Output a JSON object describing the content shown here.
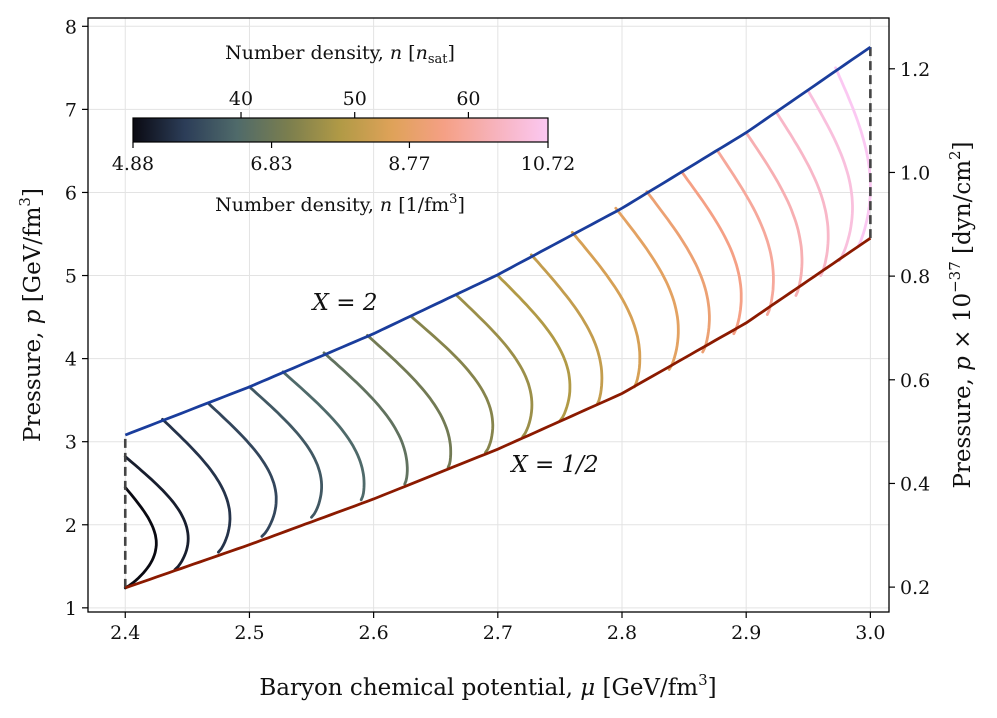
{
  "chart_data": {
    "type": "line",
    "xlabel": "Baryon chemical potential, μ [GeV/fm³]",
    "ylabel": "Pressure, p [GeV/fm³]",
    "y2label": "Pressure, p × 10⁻³⁷ [dyn/cm²]",
    "xlim": [
      2.37,
      3.015
    ],
    "ylim": [
      0.95,
      8.1
    ],
    "y2lim": [
      0.152,
      1.298
    ],
    "xticks": [
      "2.4",
      "2.5",
      "2.6",
      "2.7",
      "2.8",
      "2.9",
      "3.0"
    ],
    "yticks": [
      "1",
      "2",
      "3",
      "4",
      "5",
      "6",
      "7",
      "8"
    ],
    "y2ticks": [
      "0.2",
      "0.4",
      "0.6",
      "0.8",
      "1.0",
      "1.2"
    ],
    "grid": true,
    "colorbar": {
      "location": "top-left",
      "top_label": "Number density, n [n_sat]",
      "top_ticks": [
        "40",
        "50",
        "60"
      ],
      "top_tick_values": [
        6.4,
        8.0,
        9.6
      ],
      "bottom_label": "Number density, n [1/fm³]",
      "bottom_ticks": [
        "4.88",
        "6.83",
        "8.77",
        "10.72"
      ],
      "range": [
        4.88,
        10.72
      ],
      "colormap": [
        "#0a0a12",
        "#2c3d58",
        "#4f6a6a",
        "#7b7e4e",
        "#b19a46",
        "#dfa259",
        "#f5a085",
        "#f7b3bd",
        "#fbc8f2"
      ]
    },
    "upper_bound": {
      "name": "X = 2",
      "color": "#1a3d9c",
      "x": [
        2.4,
        2.5,
        2.6,
        2.7,
        2.8,
        2.9,
        3.0
      ],
      "y": [
        3.08,
        3.66,
        4.3,
        5.01,
        5.81,
        6.72,
        7.75
      ]
    },
    "lower_bound": {
      "name": "X = 1/2",
      "color": "#8b1a00",
      "x": [
        2.4,
        2.5,
        2.6,
        2.7,
        2.8,
        2.9,
        3.0
      ],
      "y": [
        1.24,
        1.76,
        2.31,
        2.91,
        3.58,
        4.43,
        5.45
      ]
    },
    "boundary_dashes": [
      {
        "x": 2.4,
        "y": [
          1.24,
          3.08
        ]
      },
      {
        "x": 3.0,
        "y": [
          5.45,
          7.75
        ]
      }
    ],
    "series": [
      {
        "values": {
          "mu_top": 2.4,
          "mu_bottom": 2.4,
          "p_top": 2.45,
          "p_bottom": 1.24,
          "mu_max": 2.415
        }
      },
      {
        "values": {
          "mu_top": 2.4,
          "mu_bottom": 2.44,
          "p_top": 2.82,
          "p_bottom": 1.46,
          "mu_max": 2.455
        }
      },
      {
        "values": {
          "mu_top": 2.43,
          "mu_bottom": 2.475,
          "p_top": 3.27,
          "p_bottom": 1.67,
          "mu_max": 2.49
        }
      },
      {
        "values": {
          "mu_top": 2.467,
          "mu_bottom": 2.51,
          "p_top": 3.46,
          "p_bottom": 1.86,
          "mu_max": 2.527
        }
      },
      {
        "values": {
          "mu_top": 2.5,
          "mu_bottom": 2.55,
          "p_top": 3.66,
          "p_bottom": 2.09,
          "mu_max": 2.565
        }
      },
      {
        "values": {
          "mu_top": 2.527,
          "mu_bottom": 2.59,
          "p_top": 3.84,
          "p_bottom": 2.3,
          "mu_max": 2.6
        }
      },
      {
        "values": {
          "mu_top": 2.56,
          "mu_bottom": 2.625,
          "p_top": 4.07,
          "p_bottom": 2.49,
          "mu_max": 2.635
        }
      },
      {
        "values": {
          "mu_top": 2.595,
          "mu_bottom": 2.66,
          "p_top": 4.28,
          "p_bottom": 2.69,
          "mu_max": 2.67
        }
      },
      {
        "values": {
          "mu_top": 2.63,
          "mu_bottom": 2.69,
          "p_top": 4.51,
          "p_bottom": 2.87,
          "mu_max": 2.705
        }
      },
      {
        "values": {
          "mu_top": 2.667,
          "mu_bottom": 2.72,
          "p_top": 4.76,
          "p_bottom": 3.06,
          "mu_max": 2.735
        }
      },
      {
        "values": {
          "mu_top": 2.7,
          "mu_bottom": 2.75,
          "p_top": 5.0,
          "p_bottom": 3.25,
          "mu_max": 2.765
        }
      },
      {
        "values": {
          "mu_top": 2.727,
          "mu_bottom": 2.78,
          "p_top": 5.25,
          "p_bottom": 3.45,
          "mu_max": 2.79
        }
      },
      {
        "values": {
          "mu_top": 2.76,
          "mu_bottom": 2.81,
          "p_top": 5.52,
          "p_bottom": 3.66,
          "mu_max": 2.82
        }
      },
      {
        "values": {
          "mu_top": 2.795,
          "mu_bottom": 2.838,
          "p_top": 5.81,
          "p_bottom": 3.87,
          "mu_max": 2.85
        }
      },
      {
        "values": {
          "mu_top": 2.82,
          "mu_bottom": 2.865,
          "p_top": 6.01,
          "p_bottom": 4.08,
          "mu_max": 2.875
        }
      },
      {
        "values": {
          "mu_top": 2.848,
          "mu_bottom": 2.89,
          "p_top": 6.25,
          "p_bottom": 4.3,
          "mu_max": 2.9
        }
      },
      {
        "values": {
          "mu_top": 2.877,
          "mu_bottom": 2.917,
          "p_top": 6.5,
          "p_bottom": 4.53,
          "mu_max": 2.925
        }
      },
      {
        "values": {
          "mu_top": 2.9,
          "mu_bottom": 2.94,
          "p_top": 6.72,
          "p_bottom": 4.76,
          "mu_max": 2.948
        }
      },
      {
        "values": {
          "mu_top": 2.925,
          "mu_bottom": 2.96,
          "p_top": 6.95,
          "p_bottom": 5.0,
          "mu_max": 2.968
        }
      },
      {
        "values": {
          "mu_top": 2.95,
          "mu_bottom": 2.975,
          "p_top": 7.22,
          "p_bottom": 5.18,
          "mu_max": 2.985
        }
      },
      {
        "values": {
          "mu_top": 2.972,
          "mu_bottom": 2.99,
          "p_top": 7.5,
          "p_bottom": 5.35,
          "mu_max": 2.997
        }
      }
    ]
  }
}
